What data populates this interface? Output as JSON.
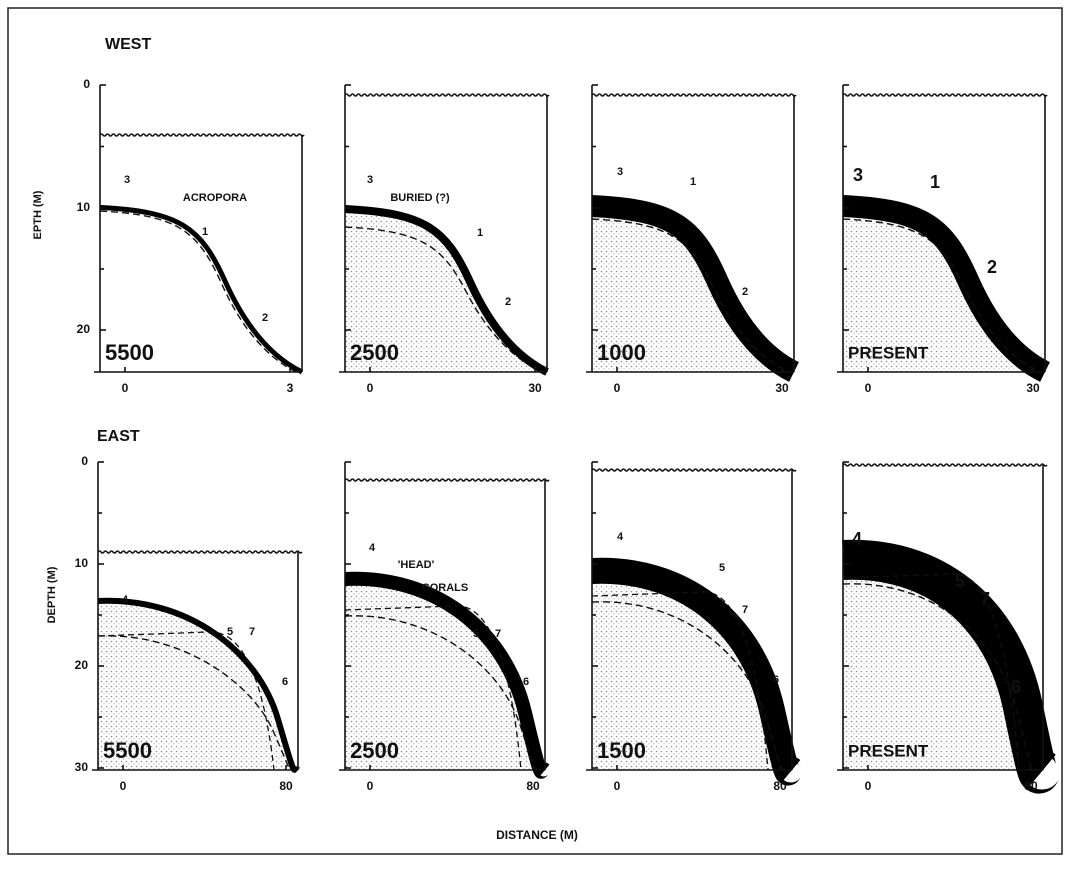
{
  "rows": [
    {
      "label": "WEST",
      "y_axis_label": "EPTH (M)",
      "yticks": [
        "0",
        "10",
        "20"
      ],
      "panels": [
        {
          "age": "5500",
          "xticks": [
            "0",
            "3"
          ],
          "annotations": [
            "3",
            "ACROPORA",
            "1",
            "2"
          ]
        },
        {
          "age": "2500",
          "xticks": [
            "0",
            "30"
          ],
          "annotations": [
            "3",
            "BURIED (?)",
            "1",
            "2"
          ]
        },
        {
          "age": "1000",
          "xticks": [
            "0",
            "30"
          ],
          "annotations": [
            "3",
            "1",
            "2"
          ]
        },
        {
          "age": "PRESENT",
          "xticks": [
            "0",
            "30"
          ],
          "annotations": [
            "3",
            "1",
            "2"
          ]
        }
      ]
    },
    {
      "label": "EAST",
      "y_axis_label": "DEPTH (M)",
      "yticks": [
        "0",
        "10",
        "20",
        "30"
      ],
      "panels": [
        {
          "age": "5500",
          "xticks": [
            "0",
            "80"
          ],
          "annotations": [
            "4",
            "5",
            "7",
            "6"
          ]
        },
        {
          "age": "2500",
          "xticks": [
            "0",
            "80"
          ],
          "annotations": [
            "4",
            "'HEAD'",
            "CORALS",
            "5",
            "7",
            "6"
          ]
        },
        {
          "age": "1500",
          "xticks": [
            "0",
            "80"
          ],
          "annotations": [
            "4",
            "5",
            "7",
            "6"
          ]
        },
        {
          "age": "PRESENT",
          "xticks": [
            "0",
            "80"
          ],
          "annotations": [
            "4",
            "5",
            "7",
            "6"
          ]
        }
      ]
    }
  ],
  "x_axis_label": "DISTANCE (M)"
}
